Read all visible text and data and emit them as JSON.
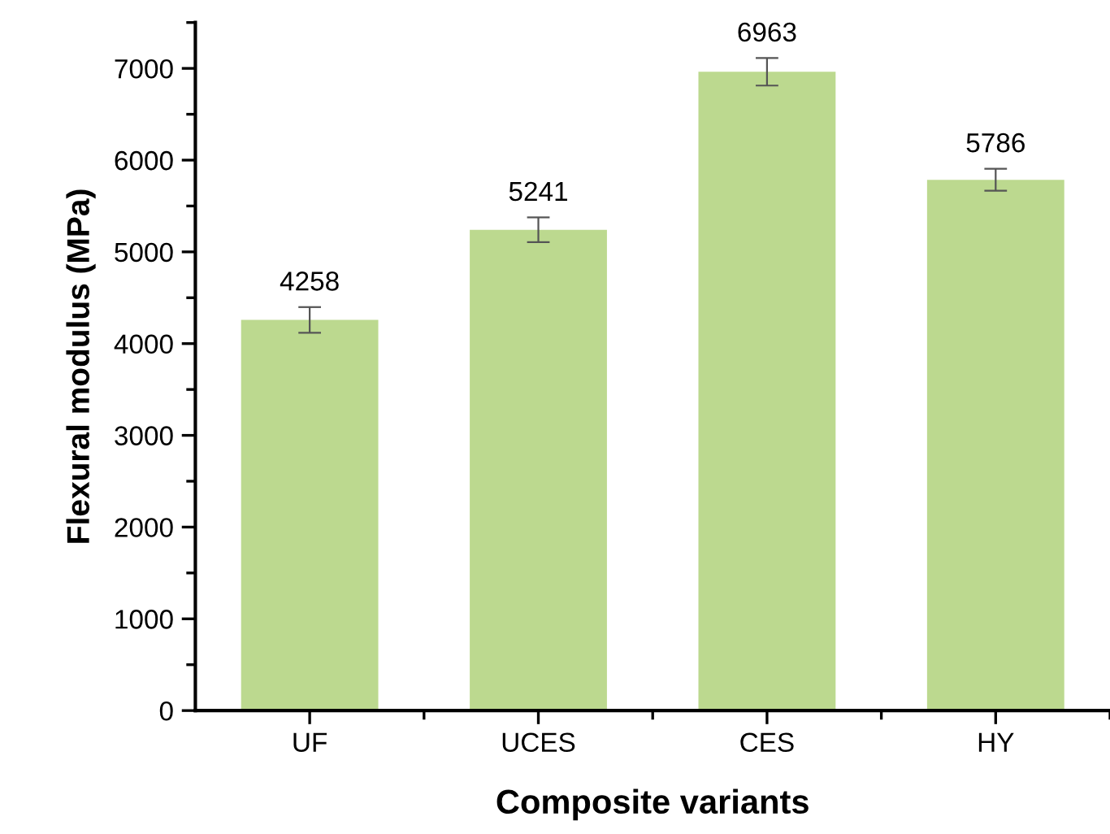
{
  "chart_data": {
    "type": "bar",
    "xlabel": "Composite variants",
    "ylabel": "Flexural modulus (MPa)",
    "categories": [
      "UF",
      "UCES",
      "CES",
      "HY"
    ],
    "values": [
      4258,
      5241,
      6963,
      5786
    ],
    "errors": [
      140,
      135,
      150,
      120
    ],
    "color": "#bcd98f",
    "ylim": [
      0,
      7500
    ],
    "yticks": [
      0,
      1000,
      2000,
      3000,
      4000,
      5000,
      6000,
      7000
    ],
    "data_labels": true,
    "grid": false,
    "legend": false
  }
}
